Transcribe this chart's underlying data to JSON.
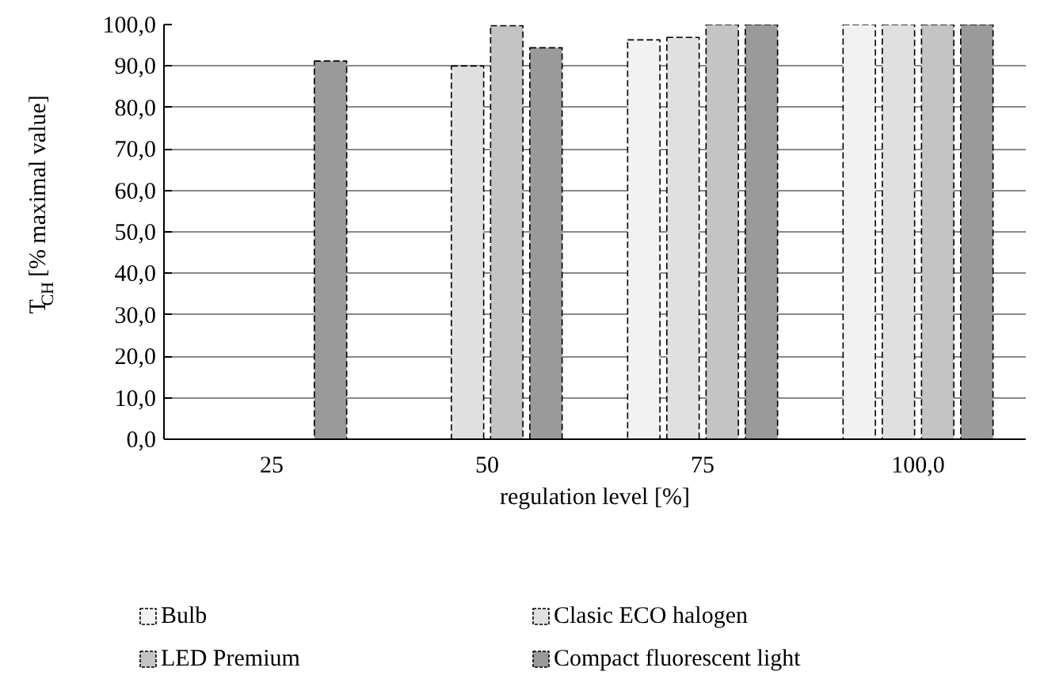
{
  "chart_data": {
    "type": "bar",
    "xlabel": "regulation level [%]",
    "ylabel": "T$_{CH}$ [% maximal value]",
    "categories": [
      "25",
      "50",
      "75",
      "100,0"
    ],
    "series": [
      {
        "name": "Bulb",
        "color": "#f2f2f2",
        "values": [
          null,
          null,
          96.3,
          100
        ]
      },
      {
        "name": "Clasic ECO halogen",
        "color": "#e0e0e0",
        "values": [
          null,
          90.0,
          96.9,
          100
        ]
      },
      {
        "name": "LED Premium",
        "color": "#c4c4c4",
        "values": [
          null,
          99.7,
          100,
          100
        ]
      },
      {
        "name": "Compact fluorescent light",
        "color": "#9a9a9a",
        "values": [
          91.2,
          94.4,
          100,
          100
        ]
      }
    ],
    "ylim": [
      0,
      100
    ],
    "yticks": [
      {
        "value": 0,
        "label": "0,0"
      },
      {
        "value": 10,
        "label": "10,0"
      },
      {
        "value": 20,
        "label": "20,0"
      },
      {
        "value": 30,
        "label": "30,0"
      },
      {
        "value": 40,
        "label": "40,0"
      },
      {
        "value": 50,
        "label": "50,0"
      },
      {
        "value": 60,
        "label": "60,0"
      },
      {
        "value": 70,
        "label": "70,0"
      },
      {
        "value": 80,
        "label": "80,0"
      },
      {
        "value": 90,
        "label": "90,0"
      },
      {
        "value": 100,
        "label": "100,0"
      }
    ],
    "grid": "y",
    "legend": "bottom"
  }
}
